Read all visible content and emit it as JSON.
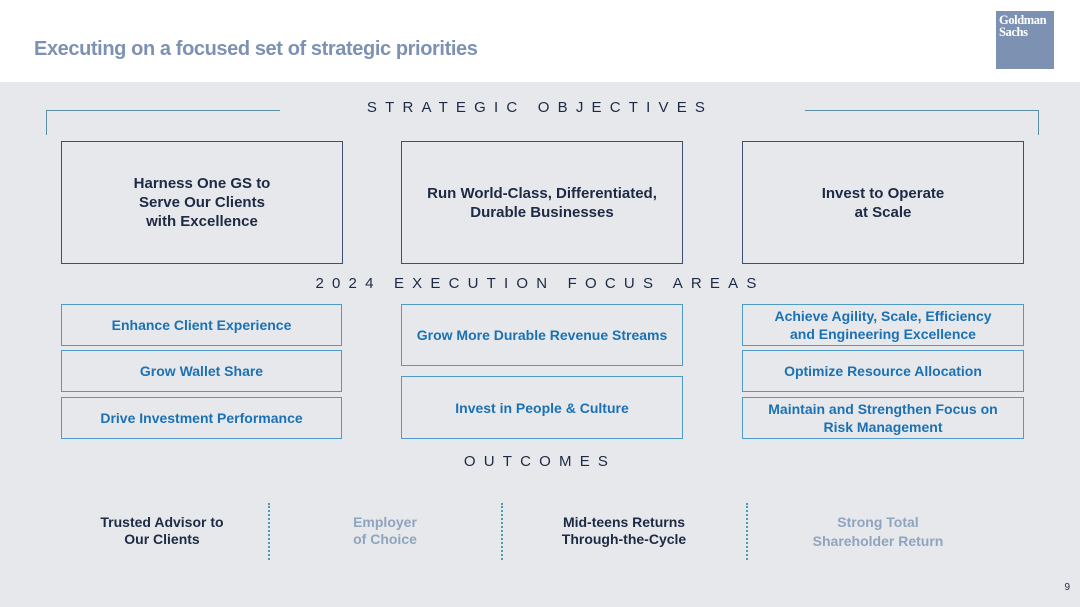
{
  "header": {
    "title": "Executing on a focused set of strategic priorities",
    "logo_line1": "Goldman",
    "logo_line2": "Sachs"
  },
  "sections": {
    "strategic_objectives": "STRATEGIC OBJECTIVES",
    "execution_focus": "2024 EXECUTION FOCUS AREAS",
    "outcomes": "OUTCOMES"
  },
  "objectives": [
    "Harness One GS to\nServe Our Clients\nwith Excellence",
    "Run World-Class, Differentiated,\nDurable Businesses",
    "Invest to Operate\nat Scale"
  ],
  "focus_areas": {
    "left": [
      "Enhance Client Experience",
      "Grow Wallet Share",
      "Drive Investment Performance"
    ],
    "center": [
      "Grow More Durable Revenue Streams",
      "Invest in People & Culture"
    ],
    "right": [
      "Achieve Agility, Scale, Efficiency\nand Engineering Excellence",
      "Optimize Resource Allocation",
      "Maintain and Strengthen Focus on\nRisk Management"
    ]
  },
  "outcomes": [
    "Trusted Advisor to\nOur Clients",
    "Employer\nof Choice",
    "Mid-teens Returns\nThrough-the-Cycle",
    "Strong Total\nShareholder Return"
  ],
  "page_number": "9",
  "colors": {
    "title": "#7d92b3",
    "panel": "#e6e8eb",
    "navy": "#1d2a44",
    "focus_text": "#1b71b3",
    "focus_border": "#4e9bc6",
    "outcome_light": "#8fa4be"
  }
}
